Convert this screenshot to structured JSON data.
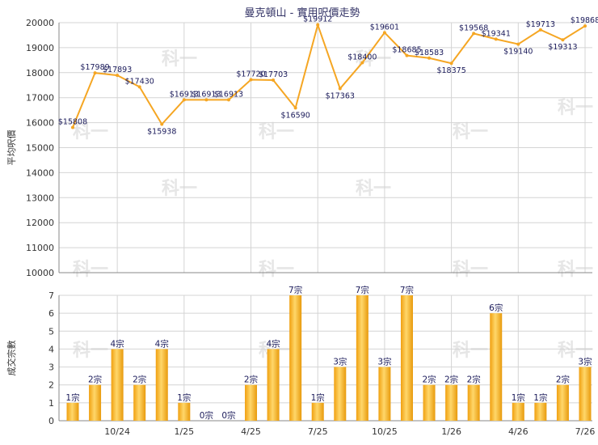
{
  "chart_data": [
    {
      "type": "line",
      "title": "曼克頓山 - 實用呎價走勢",
      "ylabel": "平均呎價",
      "ylim": [
        10000,
        20000
      ],
      "yticks": [
        10000,
        11000,
        12000,
        13000,
        14000,
        15000,
        16000,
        17000,
        18000,
        19000,
        20000
      ],
      "color": "#f5a623",
      "values": [
        15808,
        17989,
        17893,
        17430,
        15938,
        16913,
        16913,
        16913,
        17720,
        17703,
        16590,
        19912,
        17363,
        18400,
        19601,
        18685,
        18583,
        18375,
        19568,
        19341,
        19140,
        19713,
        19313,
        19868
      ],
      "labels": [
        "$15808",
        "$17989",
        "$17893",
        "$17430",
        "$15938",
        "$16913",
        "$16913",
        "$16913",
        "$17720",
        "$17703",
        "$16590",
        "$19912",
        "$17363",
        "$18400",
        "$19601",
        "$18685",
        "$18583",
        "$18375",
        "$19568",
        "$19341",
        "$19140",
        "$19713",
        "$19313",
        "$19868"
      ]
    },
    {
      "type": "bar",
      "ylabel": "成交宗數",
      "ylim": [
        0,
        7
      ],
      "yticks": [
        0,
        1,
        2,
        3,
        4,
        5,
        6,
        7
      ],
      "color": "#f5a623",
      "values": [
        1,
        2,
        4,
        2,
        4,
        1,
        0,
        0,
        2,
        4,
        7,
        1,
        3,
        7,
        3,
        7,
        2,
        2,
        2,
        6,
        1,
        1,
        2,
        3
      ],
      "labels": [
        "1宗",
        "2宗",
        "4宗",
        "2宗",
        "4宗",
        "1宗",
        "0宗",
        "0宗",
        "2宗",
        "4宗",
        "7宗",
        "1宗",
        "3宗",
        "7宗",
        "3宗",
        "7宗",
        "2宗",
        "2宗",
        "2宗",
        "6宗",
        "1宗",
        "1宗",
        "2宗",
        "3宗"
      ],
      "xticks": [
        {
          "index": 2,
          "label": "10/24"
        },
        {
          "index": 5,
          "label": "1/25"
        },
        {
          "index": 8,
          "label": "4/25"
        },
        {
          "index": 11,
          "label": "7/25"
        },
        {
          "index": 14,
          "label": "10/25"
        },
        {
          "index": 17,
          "label": "1/26"
        },
        {
          "index": 20,
          "label": "4/26"
        },
        {
          "index": 23,
          "label": "7/26"
        }
      ]
    }
  ],
  "watermark": "科一"
}
